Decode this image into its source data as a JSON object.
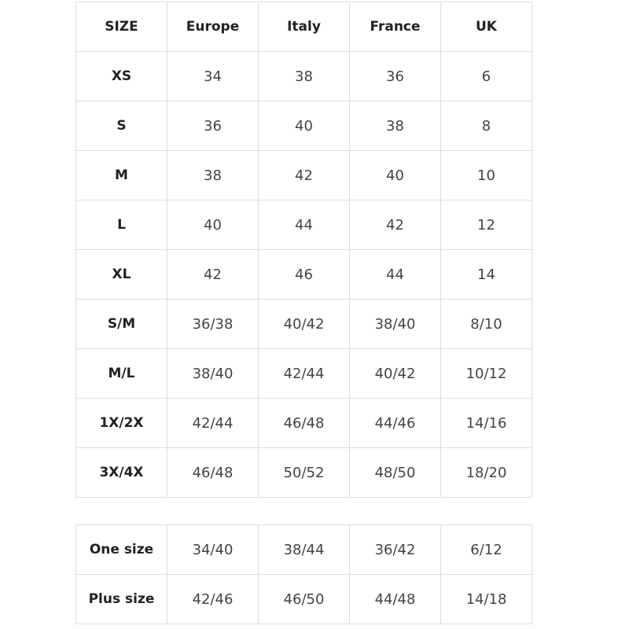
{
  "table": {
    "header": [
      "SIZE",
      "Europe",
      "Italy",
      "France",
      "UK"
    ],
    "rows": [
      [
        "XS",
        "34",
        "38",
        "36",
        "6"
      ],
      [
        "S",
        "36",
        "40",
        "38",
        "8"
      ],
      [
        "M",
        "38",
        "42",
        "40",
        "10"
      ],
      [
        "L",
        "40",
        "44",
        "42",
        "12"
      ],
      [
        "XL",
        "42",
        "46",
        "44",
        "14"
      ],
      [
        "S/M",
        "36/38",
        "40/42",
        "38/40",
        "8/10"
      ],
      [
        "M/L",
        "38/40",
        "42/44",
        "40/42",
        "10/12"
      ],
      [
        "1X/2X",
        "42/44",
        "46/48",
        "44/46",
        "14/16"
      ],
      [
        "3X/4X",
        "46/48",
        "50/52",
        "48/50",
        "18/20"
      ]
    ]
  },
  "table2": {
    "rows": [
      [
        "One size",
        "34/40",
        "38/44",
        "36/42",
        "6/12"
      ],
      [
        "Plus size",
        "42/46",
        "46/50",
        "44/48",
        "14/18"
      ]
    ]
  }
}
